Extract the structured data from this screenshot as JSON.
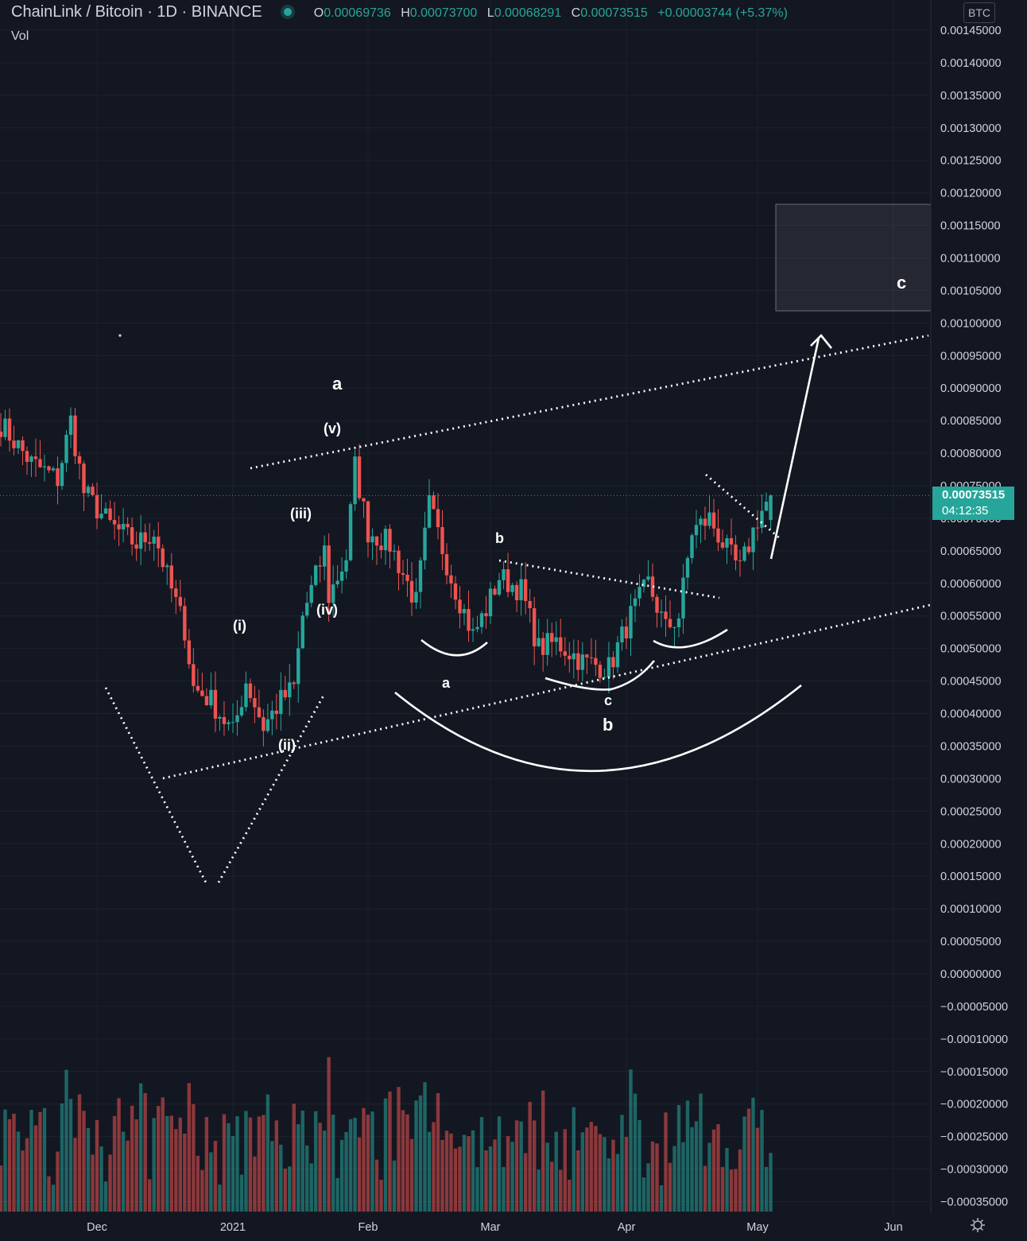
{
  "header": {
    "symbol": "ChainLink / Bitcoin · 1D · BINANCE",
    "o_label": "O",
    "o_value": "0.00069736",
    "h_label": "H",
    "h_value": "0.00073700",
    "l_label": "L",
    "l_value": "0.00068291",
    "c_label": "C",
    "c_value": "0.00073515",
    "change": "+0.00003744 (+5.37%)",
    "volume_label": "Vol"
  },
  "price_tag": {
    "price": "0.00073515",
    "countdown": "04:12:35"
  },
  "currency_button": "BTC",
  "colors": {
    "background": "#131722",
    "up": "#26a69a",
    "down": "#ef5350",
    "axis_text": "#d1d4dc",
    "annotation": "#ffffff"
  },
  "icons": {
    "settings": "gear-icon",
    "live": "live-dot-icon"
  },
  "chart_data": {
    "type": "candlestick",
    "y_axis": {
      "ylim": [
        -0.00036,
        0.0015
      ],
      "ticks": [
        "0.00145000",
        "0.00140000",
        "0.00135000",
        "0.00130000",
        "0.00125000",
        "0.00120000",
        "0.00115000",
        "0.00110000",
        "0.00105000",
        "0.00100000",
        "0.00095000",
        "0.00090000",
        "0.00085000",
        "0.00080000",
        "0.00075000",
        "0.00070000",
        "0.00065000",
        "0.00060000",
        "0.00055000",
        "0.00050000",
        "0.00045000",
        "0.00040000",
        "0.00035000",
        "0.00030000",
        "0.00025000",
        "0.00020000",
        "0.00015000",
        "0.00010000",
        "0.00005000",
        "0.00000000",
        "−0.00005000",
        "−0.00010000",
        "−0.00015000",
        "−0.00020000",
        "−0.00025000",
        "−0.00030000",
        "−0.00035000"
      ]
    },
    "x_axis": {
      "ticks": [
        "Dec",
        "2021",
        "Feb",
        "Mar",
        "Apr",
        "May",
        "Jun"
      ]
    },
    "price_path": [
      [
        "2020-11-09",
        0.000845
      ],
      [
        "2020-11-16",
        0.000785
      ],
      [
        "2020-11-22",
        0.00076
      ],
      [
        "2020-11-25",
        0.00085
      ],
      [
        "2020-11-28",
        0.00074
      ],
      [
        "2020-12-04",
        0.00069
      ],
      [
        "2020-12-10",
        0.00066
      ],
      [
        "2020-12-14",
        0.00068
      ],
      [
        "2020-12-17",
        0.00061
      ],
      [
        "2020-12-21",
        0.00053
      ],
      [
        "2020-12-23",
        0.00044
      ],
      [
        "2020-12-27",
        0.00042
      ],
      [
        "2021-01-01",
        0.00037
      ],
      [
        "2021-01-04",
        0.00045
      ],
      [
        "2021-01-08",
        0.00038
      ],
      [
        "2021-01-12",
        0.00042
      ],
      [
        "2021-01-15",
        0.00044
      ],
      [
        "2021-01-17",
        0.00055
      ],
      [
        "2021-01-22",
        0.00065
      ],
      [
        "2021-01-23",
        0.00058
      ],
      [
        "2021-01-27",
        0.00064
      ],
      [
        "2021-01-29",
        0.00078
      ],
      [
        "2021-02-01",
        0.00068
      ],
      [
        "2021-02-06",
        0.00066
      ],
      [
        "2021-02-12",
        0.00057
      ],
      [
        "2021-02-15",
        0.00072
      ],
      [
        "2021-02-20",
        0.00061
      ],
      [
        "2021-02-25",
        0.00052
      ],
      [
        "2021-02-28",
        0.00056
      ],
      [
        "2021-03-03",
        0.00061
      ],
      [
        "2021-03-08",
        0.00059
      ],
      [
        "2021-03-12",
        0.0005
      ],
      [
        "2021-03-16",
        0.00051
      ],
      [
        "2021-03-22",
        0.00048
      ],
      [
        "2021-03-28",
        0.00047
      ],
      [
        "2021-04-02",
        0.00055
      ],
      [
        "2021-04-06",
        0.0006
      ],
      [
        "2021-04-10",
        0.00053
      ],
      [
        "2021-04-13",
        0.00055
      ],
      [
        "2021-04-16",
        0.00068
      ],
      [
        "2021-04-20",
        0.0007
      ],
      [
        "2021-04-24",
        0.00065
      ],
      [
        "2021-04-27",
        0.00062
      ],
      [
        "2021-05-01",
        0.0007
      ],
      [
        "2021-05-04",
        0.000735
      ]
    ],
    "last": {
      "open": 0.00069736,
      "high": 0.000737,
      "low": 0.00068291,
      "close": 0.00073515
    },
    "annotations": [
      "a",
      "(v)",
      "(iii)",
      "(iv)",
      "(i)",
      "(ii)",
      "b",
      "a",
      "c",
      "b",
      "c"
    ]
  }
}
